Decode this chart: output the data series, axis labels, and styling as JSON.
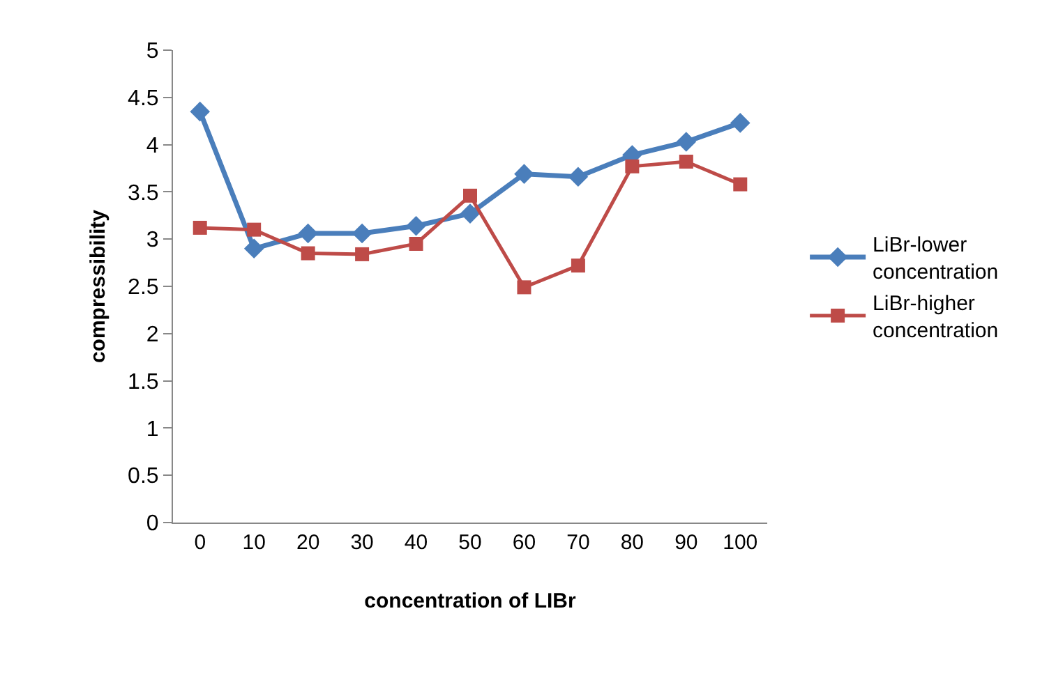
{
  "chart_data": {
    "type": "line",
    "xlabel": "concentration of LIBr",
    "ylabel": "compressibility",
    "categories": [
      "0",
      "10",
      "20",
      "30",
      "40",
      "50",
      "60",
      "70",
      "80",
      "90",
      "100"
    ],
    "series": [
      {
        "name": "LiBr-lower concentration",
        "color": "#4a7ebb",
        "marker": "diamond",
        "values": [
          4.35,
          2.9,
          3.06,
          3.06,
          3.14,
          3.27,
          3.69,
          3.66,
          3.89,
          4.03,
          4.23
        ]
      },
      {
        "name": "LiBr-higher concentration",
        "color": "#be4b48",
        "marker": "square",
        "values": [
          3.12,
          3.1,
          2.85,
          2.84,
          2.95,
          3.46,
          2.49,
          2.72,
          3.77,
          3.82,
          3.58
        ]
      }
    ],
    "ylim": [
      0,
      5
    ],
    "yticks": [
      0,
      0.5,
      1,
      1.5,
      2,
      2.5,
      3,
      3.5,
      4,
      4.5,
      5
    ],
    "legend": "right",
    "line_style": "solid"
  }
}
